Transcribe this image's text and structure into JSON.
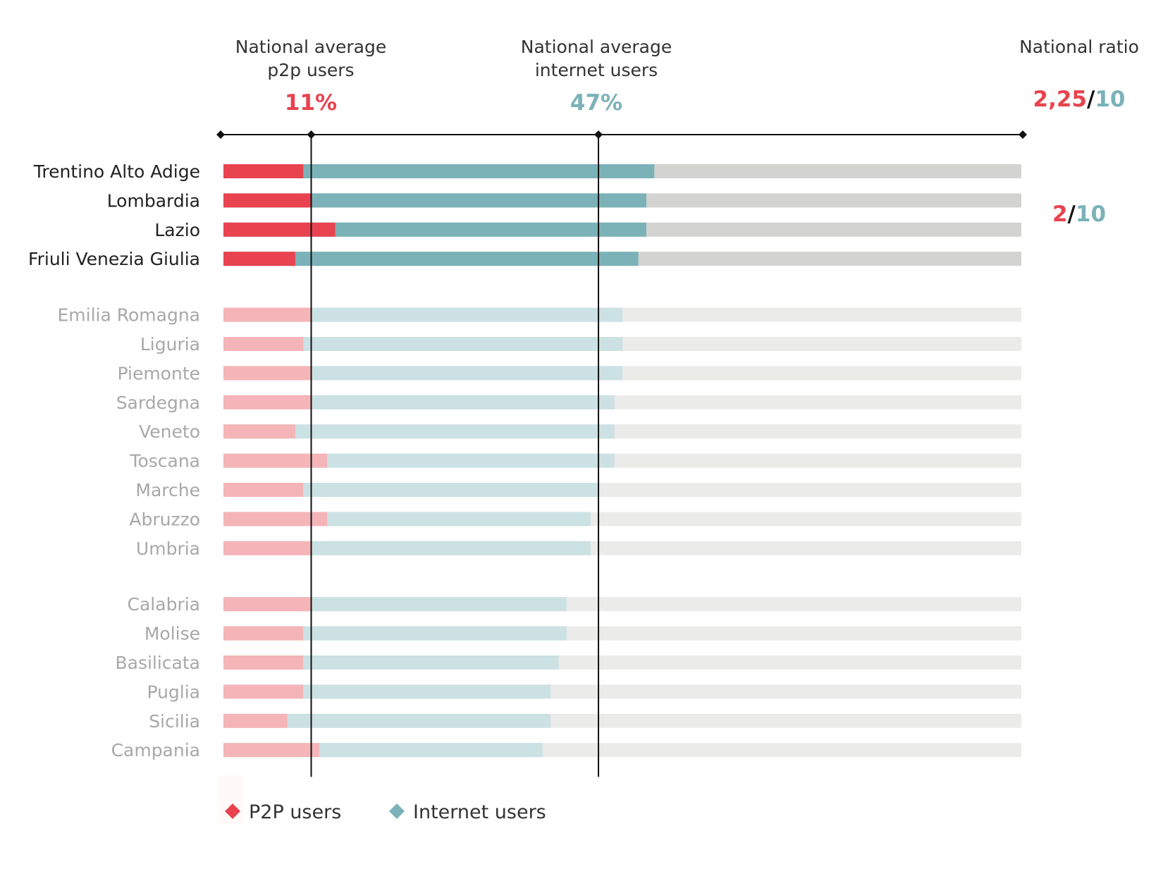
{
  "colors": {
    "p2p": "#e8434f",
    "internet": "#7ab2b8",
    "track": "#d3d3d1",
    "p2p_faded": "#f5b5b8",
    "internet_faded": "#cbe1e3",
    "track_faded": "#ebebea",
    "label_dark": "#222222",
    "label_faded": "#a8a8a8",
    "axis": "#111111"
  },
  "headers": {
    "p2p_avg_line1": "National average",
    "p2p_avg_line2": "p2p users",
    "p2p_avg_value": "11%",
    "internet_avg_line1": "National average",
    "internet_avg_line2": "internet users",
    "internet_avg_value": "47%",
    "ratio_title": "National ratio",
    "ratio_num": "2,25",
    "ratio_sep": "/",
    "ratio_den": "10"
  },
  "group_ratio": {
    "num": "2",
    "sep": "/",
    "den": "10"
  },
  "legend": {
    "p2p": "P2P users",
    "internet": "Internet users"
  },
  "chart_data": {
    "type": "bar",
    "orientation": "horizontal",
    "stacked": true,
    "xlim": [
      0,
      100
    ],
    "reference_lines": [
      {
        "label": "National average p2p users",
        "value": 11
      },
      {
        "label": "National average internet users",
        "value": 47
      }
    ],
    "categories": [
      "Trentino Alto Adige",
      "Lombardia",
      "Lazio",
      "Friuli Venezia Giulia",
      "Emilia Romagna",
      "Liguria",
      "Piemonte",
      "Sardegna",
      "Veneto",
      "Toscana",
      "Marche",
      "Abruzzo",
      "Umbria",
      "Calabria",
      "Molise",
      "Basilicata",
      "Puglia",
      "Sicilia",
      "Campania"
    ],
    "groups": [
      0,
      0,
      0,
      0,
      1,
      1,
      1,
      1,
      1,
      1,
      1,
      1,
      1,
      2,
      2,
      2,
      2,
      2,
      2
    ],
    "highlighted": [
      true,
      true,
      true,
      true,
      false,
      false,
      false,
      false,
      false,
      false,
      false,
      false,
      false,
      false,
      false,
      false,
      false,
      false,
      false
    ],
    "series": [
      {
        "name": "P2P users",
        "values": [
          10,
          11,
          14,
          9,
          11,
          10,
          11,
          11,
          9,
          13,
          10,
          13,
          11,
          11,
          10,
          10,
          10,
          8,
          12
        ]
      },
      {
        "name": "Internet users",
        "values": [
          54,
          53,
          53,
          52,
          50,
          50,
          50,
          49,
          49,
          49,
          47,
          46,
          46,
          43,
          43,
          42,
          41,
          41,
          40
        ]
      }
    ]
  }
}
